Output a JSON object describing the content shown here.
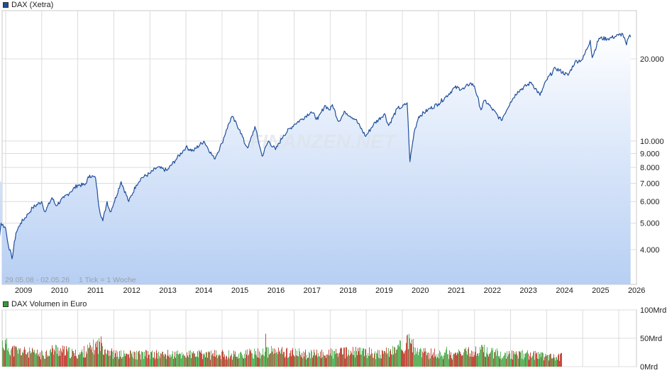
{
  "price_chart": {
    "legend_label": "DAX (Xetra)",
    "legend_color": "#1f4e9c",
    "range_label": "29.05.08 - 02.05.26",
    "tick_label": "1 Tick = 1 Woche",
    "watermark": "FINANZEN.NET",
    "y_tick_labels": [
      "20.000",
      "10.000",
      "9.000",
      "8.000",
      "7.000",
      "6.000",
      "5.000",
      "4.000"
    ],
    "x_tick_labels": [
      "2009",
      "2010",
      "2011",
      "2012",
      "2013",
      "2014",
      "2015",
      "2016",
      "2017",
      "2018",
      "2019",
      "2020",
      "2021",
      "2022",
      "2023",
      "2024",
      "2025",
      "2026"
    ]
  },
  "volume_chart": {
    "legend_label": "DAX Volumen in Euro",
    "legend_color": "#2ca02c",
    "y_tick_labels": [
      "100Mrd",
      "50Mrd",
      "0Mrd"
    ]
  },
  "chart_data": [
    {
      "type": "area",
      "title": "DAX (Xetra)",
      "scale": "log",
      "ylim": [
        3000,
        25000
      ],
      "xlim": [
        "2008-05-29",
        "2026-05-02"
      ],
      "y_ticks": [
        4000,
        5000,
        6000,
        7000,
        8000,
        9000,
        10000,
        20000
      ],
      "x_ticks": [
        "2009",
        "2010",
        "2011",
        "2012",
        "2013",
        "2014",
        "2015",
        "2016",
        "2017",
        "2018",
        "2019",
        "2020",
        "2021",
        "2022",
        "2023",
        "2024",
        "2025",
        "2026"
      ],
      "grid": true,
      "legend": "top-left",
      "series": [
        {
          "name": "DAX (Xetra)",
          "color": "#1f4e9c",
          "points": [
            [
              "2008-05-29",
              7100
            ],
            [
              "2008-07-01",
              6500
            ],
            [
              "2008-09-01",
              6300
            ],
            [
              "2008-10-10",
              4500
            ],
            [
              "2008-10-27",
              4300
            ],
            [
              "2008-11-15",
              5000
            ],
            [
              "2008-12-31",
              4800
            ],
            [
              "2009-01-20",
              4300
            ],
            [
              "2009-03-06",
              3700
            ],
            [
              "2009-04-15",
              4600
            ],
            [
              "2009-06-01",
              5000
            ],
            [
              "2009-08-15",
              5400
            ],
            [
              "2009-10-01",
              5700
            ],
            [
              "2009-12-31",
              6000
            ],
            [
              "2010-02-05",
              5500
            ],
            [
              "2010-04-15",
              6200
            ],
            [
              "2010-05-25",
              5800
            ],
            [
              "2010-08-15",
              6200
            ],
            [
              "2010-10-15",
              6500
            ],
            [
              "2010-12-31",
              6900
            ],
            [
              "2011-03-15",
              6900
            ],
            [
              "2011-05-02",
              7500
            ],
            [
              "2011-07-01",
              7300
            ],
            [
              "2011-08-09",
              5600
            ],
            [
              "2011-09-12",
              5100
            ],
            [
              "2011-10-25",
              6000
            ],
            [
              "2011-11-25",
              5500
            ],
            [
              "2011-12-31",
              5900
            ],
            [
              "2012-03-15",
              7100
            ],
            [
              "2012-06-01",
              6000
            ],
            [
              "2012-08-15",
              6900
            ],
            [
              "2012-10-01",
              7300
            ],
            [
              "2012-12-31",
              7600
            ],
            [
              "2013-03-15",
              8000
            ],
            [
              "2013-06-24",
              7800
            ],
            [
              "2013-09-15",
              8500
            ],
            [
              "2013-12-31",
              9500
            ],
            [
              "2014-03-15",
              9200
            ],
            [
              "2014-07-01",
              10000
            ],
            [
              "2014-10-15",
              8600
            ],
            [
              "2014-12-31",
              9800
            ],
            [
              "2015-02-15",
              11000
            ],
            [
              "2015-04-10",
              12300
            ],
            [
              "2015-06-30",
              11000
            ],
            [
              "2015-08-24",
              9700
            ],
            [
              "2015-09-25",
              9500
            ],
            [
              "2015-11-30",
              11300
            ],
            [
              "2016-02-11",
              8800
            ],
            [
              "2016-04-15",
              10000
            ],
            [
              "2016-06-27",
              9300
            ],
            [
              "2016-09-15",
              10500
            ],
            [
              "2016-12-31",
              11500
            ],
            [
              "2017-03-15",
              12000
            ],
            [
              "2017-06-20",
              12800
            ],
            [
              "2017-08-30",
              12000
            ],
            [
              "2017-11-07",
              13500
            ],
            [
              "2017-12-31",
              13000
            ],
            [
              "2018-01-23",
              13600
            ],
            [
              "2018-03-26",
              11800
            ],
            [
              "2018-06-01",
              12800
            ],
            [
              "2018-09-15",
              12000
            ],
            [
              "2018-12-27",
              10400
            ],
            [
              "2019-03-15",
              11500
            ],
            [
              "2019-07-05",
              12600
            ],
            [
              "2019-08-15",
              11400
            ],
            [
              "2019-11-15",
              13200
            ],
            [
              "2019-12-31",
              13300
            ],
            [
              "2020-02-19",
              13800
            ],
            [
              "2020-03-18",
              8400
            ],
            [
              "2020-04-30",
              10800
            ],
            [
              "2020-06-15",
              12300
            ],
            [
              "2020-09-15",
              13000
            ],
            [
              "2020-12-31",
              13700
            ],
            [
              "2021-03-15",
              14500
            ],
            [
              "2021-06-15",
              15700
            ],
            [
              "2021-09-15",
              15500
            ],
            [
              "2021-11-17",
              16300
            ],
            [
              "2021-12-31",
              15900
            ],
            [
              "2022-03-08",
              13000
            ],
            [
              "2022-04-15",
              14100
            ],
            [
              "2022-06-15",
              13300
            ],
            [
              "2022-09-29",
              11900
            ],
            [
              "2022-12-31",
              13900
            ],
            [
              "2023-03-15",
              15200
            ],
            [
              "2023-07-31",
              16400
            ],
            [
              "2023-10-27",
              14700
            ],
            [
              "2023-12-31",
              16700
            ],
            [
              "2024-03-31",
              18500
            ],
            [
              "2024-08-05",
              17400
            ],
            [
              "2024-10-15",
              19500
            ],
            [
              "2024-12-31",
              19900
            ],
            [
              "2025-03-18",
              23400
            ],
            [
              "2025-04-07",
              20200
            ],
            [
              "2025-06-15",
              23800
            ],
            [
              "2025-09-15",
              23700
            ],
            [
              "2025-12-31",
              24400
            ],
            [
              "2026-02-10",
              24700
            ],
            [
              "2026-03-20",
              22500
            ],
            [
              "2026-04-15",
              24200
            ],
            [
              "2026-05-01",
              24000
            ]
          ]
        }
      ]
    },
    {
      "type": "bar",
      "title": "DAX Volumen in Euro",
      "ylim": [
        0,
        100
      ],
      "y_unit": "Mrd",
      "y_ticks": [
        0,
        50,
        100
      ],
      "grid": true,
      "legend": "top-left",
      "series": [
        {
          "name": "DAX Volumen in Euro",
          "colors": {
            "up": "#4caf50",
            "down": "#c0392b"
          },
          "levels": [
            [
              "2008-05-29",
              28
            ],
            [
              "2008-10-15",
              48
            ],
            [
              "2009-03-15",
              30
            ],
            [
              "2009-12-31",
              22
            ],
            [
              "2010-05-15",
              32
            ],
            [
              "2010-12-31",
              22
            ],
            [
              "2011-08-15",
              42
            ],
            [
              "2011-12-31",
              22
            ],
            [
              "2012-06-15",
              22
            ],
            [
              "2013-06-15",
              22
            ],
            [
              "2014-06-15",
              22
            ],
            [
              "2015-06-15",
              22
            ],
            [
              "2016-01-15",
              25
            ],
            [
              "2016-06-24",
              28
            ],
            [
              "2017-06-15",
              22
            ],
            [
              "2018-03-15",
              25
            ],
            [
              "2018-12-15",
              27
            ],
            [
              "2019-06-15",
              22
            ],
            [
              "2020-03-15",
              45
            ],
            [
              "2020-06-15",
              25
            ],
            [
              "2021-06-15",
              22
            ],
            [
              "2022-03-15",
              30
            ],
            [
              "2022-10-15",
              22
            ],
            [
              "2023-06-15",
              22
            ],
            [
              "2024-05-15",
              18
            ]
          ],
          "spikes": [
            [
              "2008-06-20",
              42
            ],
            [
              "2008-07-18",
              67
            ],
            [
              "2008-10-10",
              55
            ],
            [
              "2016-03-18",
              58
            ],
            [
              "2020-03-20",
              42
            ],
            [
              "2021-03-19",
              35
            ],
            [
              "2022-03-18",
              38
            ],
            [
              "2022-06-17",
              33
            ]
          ],
          "end": "2024-05-31"
        }
      ]
    }
  ]
}
